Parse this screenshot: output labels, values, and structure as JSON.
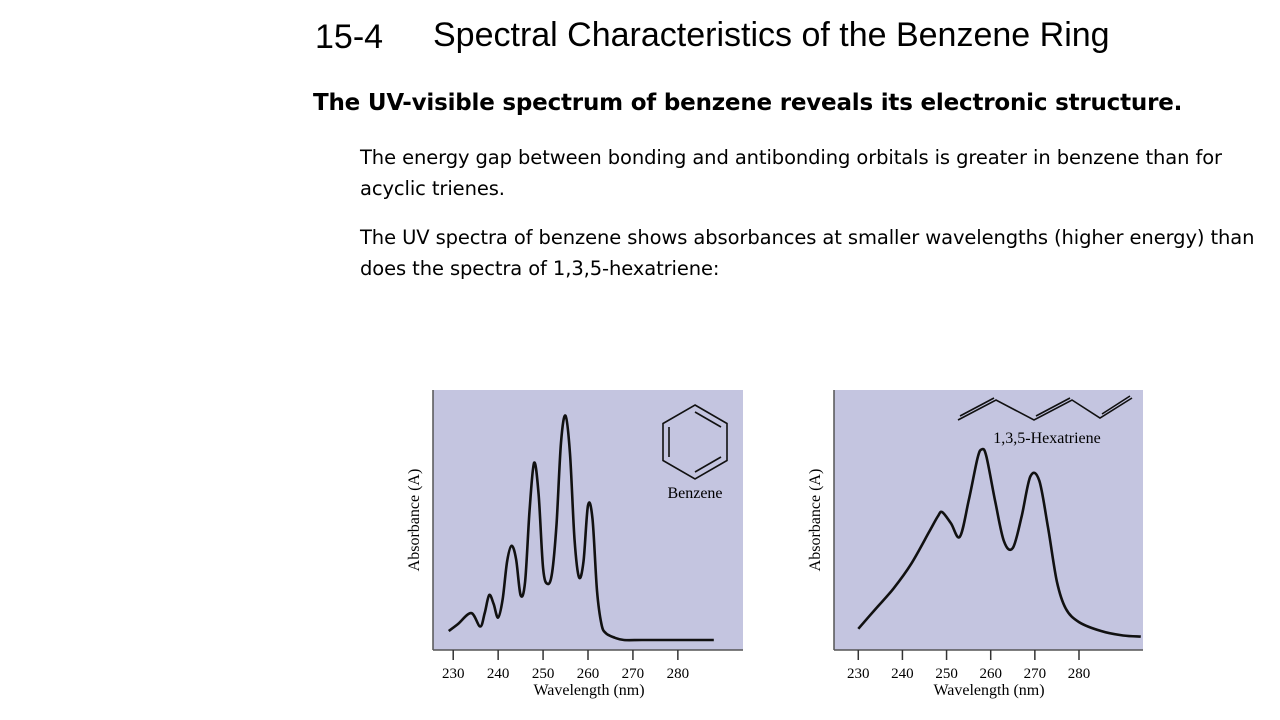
{
  "slide": {
    "number": "15-4",
    "title": "Spectral Characteristics of the Benzene Ring",
    "heading": "The UV-visible spectrum of benzene reveals its electronic structure.",
    "paragraphs": [
      "The energy gap between bonding and antibonding orbitals is greater in benzene than for acyclic trienes.",
      "The UV spectra of benzene shows absorbances at smaller wavelengths (higher energy) than does the spectra of 1,3,5-hexatriene:"
    ]
  },
  "colors": {
    "plot_background": "#c4c5e0",
    "curve": "#111111"
  },
  "chart_data": [
    {
      "type": "line",
      "title": "",
      "series": [
        {
          "name": "Benzene",
          "x": [
            229,
            231,
            234,
            236,
            237,
            238,
            239,
            240,
            241,
            242,
            243,
            244,
            245,
            246,
            247,
            248,
            249,
            250,
            251,
            252,
            253,
            254,
            255,
            256,
            257,
            258,
            259,
            260,
            261,
            262,
            263,
            264,
            266,
            268,
            272,
            278,
            288
          ],
          "y": [
            0.04,
            0.07,
            0.12,
            0.06,
            0.12,
            0.2,
            0.16,
            0.1,
            0.18,
            0.35,
            0.42,
            0.36,
            0.2,
            0.26,
            0.58,
            0.79,
            0.65,
            0.32,
            0.25,
            0.3,
            0.52,
            0.88,
            1.0,
            0.83,
            0.45,
            0.28,
            0.35,
            0.6,
            0.54,
            0.22,
            0.07,
            0.03,
            0.01,
            0.0,
            0.0,
            0.0,
            0.0
          ]
        }
      ],
      "x_ticks": [
        "230",
        "240",
        "250",
        "260",
        "270",
        "280"
      ],
      "xlabel": "Wavelength (nm)",
      "ylabel": "Absorbance (A)",
      "xlim": [
        225.5,
        294.5
      ],
      "ylim": [
        0,
        1.07
      ],
      "grid": false,
      "annotation": "Benzene"
    },
    {
      "type": "line",
      "title": "",
      "series": [
        {
          "name": "1,3,5-Hexatriene",
          "x": [
            230,
            234,
            238,
            242,
            246,
            248,
            249,
            251,
            253,
            255,
            257,
            258,
            259,
            261,
            263,
            265,
            267,
            269,
            271,
            273,
            275,
            277,
            280,
            285,
            290,
            294
          ],
          "y": [
            0.05,
            0.14,
            0.23,
            0.34,
            0.48,
            0.55,
            0.57,
            0.52,
            0.46,
            0.62,
            0.81,
            0.85,
            0.82,
            0.62,
            0.44,
            0.41,
            0.55,
            0.73,
            0.71,
            0.5,
            0.26,
            0.14,
            0.08,
            0.04,
            0.02,
            0.015
          ]
        }
      ],
      "x_ticks": [
        "230",
        "240",
        "250",
        "260",
        "270",
        "280"
      ],
      "xlabel": "Wavelength (nm)",
      "ylabel": "Absorbance (A)",
      "xlim": [
        224.5,
        294.5
      ],
      "ylim": [
        0,
        1.07
      ],
      "grid": false,
      "annotation": "1,3,5-Hexatriene"
    }
  ]
}
